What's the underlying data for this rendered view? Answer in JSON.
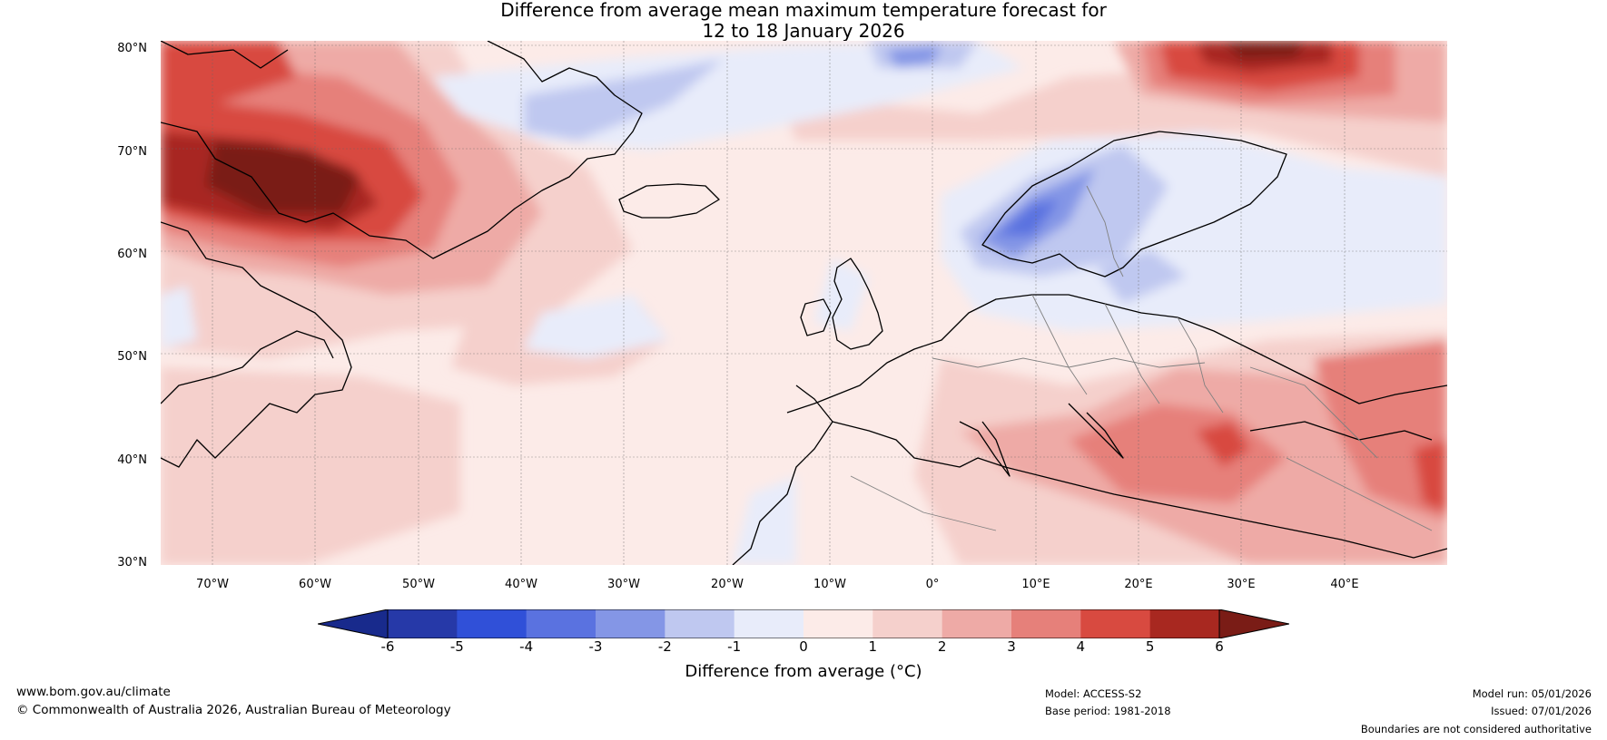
{
  "title": {
    "line1": "Difference from average mean maximum temperature forecast for",
    "line2": "12 to 18 January 2026"
  },
  "map": {
    "latitude_labels": [
      "80°N",
      "70°N",
      "60°N",
      "50°N",
      "40°N",
      "30°N"
    ],
    "longitude_labels": [
      "70°W",
      "60°W",
      "50°W",
      "40°W",
      "30°W",
      "20°W",
      "10°W",
      "0°",
      "10°E",
      "20°E",
      "30°E",
      "40°E"
    ],
    "lat_range": [
      30,
      81
    ],
    "lon_range": [
      -75,
      50
    ],
    "colors": {
      "ocean_base": "#fcebe8",
      "coast": "#000000",
      "borders": "#808080"
    }
  },
  "colorbar": {
    "ticks": [
      "-6",
      "-5",
      "-4",
      "-3",
      "-2",
      "-1",
      "0",
      "1",
      "2",
      "3",
      "4",
      "5",
      "6"
    ],
    "label": "Difference from average (°C)",
    "colors": [
      "#182a8c",
      "#2639a8",
      "#3050d8",
      "#5a72e0",
      "#8496e6",
      "#bfc8f0",
      "#e8ecfa",
      "#fcebe8",
      "#f5d0cc",
      "#eeaaa6",
      "#e6807a",
      "#d84a40",
      "#a82820",
      "#7a1c16"
    ]
  },
  "footer": {
    "website": "www.bom.gov.au/climate",
    "copyright": "© Commonwealth of Australia 2026, Australian Bureau of Meteorology",
    "model": "Model: ACCESS-S2",
    "base_period": "Base period: 1981-2018",
    "model_run": "Model run: 05/01/2026",
    "issued": "Issued: 07/01/2026",
    "boundaries": "Boundaries are not considered authoritative"
  }
}
